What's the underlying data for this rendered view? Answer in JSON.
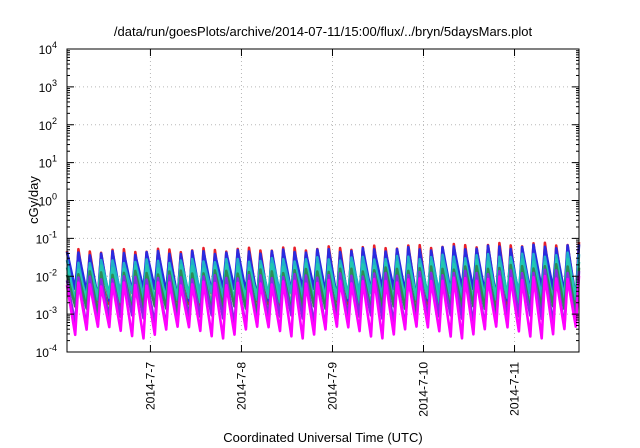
{
  "chart_data": {
    "type": "line",
    "title": "/data/run/goesPlots/archive/2014-07-11/15:00/flux/../bryn/5daysMars.plot",
    "xlabel": "Coordinated Universal Time (UTC)",
    "ylabel": "cGy/day",
    "y_scale": "log",
    "ylim": [
      0.0001,
      10000
    ],
    "xlim": [
      "2014-07-06 02:00",
      "2014-07-11 17:00"
    ],
    "x_ticks": [
      "2014-7-7",
      "2014-7-8",
      "2014-7-9",
      "2014-7-10",
      "2014-7-11"
    ],
    "y_ticks": [
      {
        "base": "10",
        "exp": "-4"
      },
      {
        "base": "10",
        "exp": "-3"
      },
      {
        "base": "10",
        "exp": "-2"
      },
      {
        "base": "10",
        "exp": "-1"
      },
      {
        "base": "10",
        "exp": "0"
      },
      {
        "base": "10",
        "exp": "1"
      },
      {
        "base": "10",
        "exp": "2"
      },
      {
        "base": "10",
        "exp": "3"
      },
      {
        "base": "10",
        "exp": "4"
      }
    ],
    "grid": true,
    "legend": "none",
    "cycles_per_day": 8,
    "peak_trend": [
      0.04,
      0.042,
      0.045,
      0.05,
      0.057,
      0.063
    ],
    "series": [
      {
        "color": "#e8202a",
        "peak_factor": 1.15,
        "trough": 0.0016
      },
      {
        "color": "#2a2ae0",
        "peak_factor": 1.0,
        "trough": 0.0035
      },
      {
        "color": "#1fb0c8",
        "peak_factor": 0.6,
        "trough": 0.0028
      },
      {
        "color": "#22c8b0",
        "peak_factor": 0.42,
        "trough": 0.0022
      },
      {
        "color": "#2e8b57",
        "peak_factor": 0.3,
        "trough": 0.0012
      },
      {
        "color": "#8a2be2",
        "peak_factor": 0.22,
        "trough": 0.0007
      },
      {
        "color": "#ff00ff",
        "peak_factor": 0.15,
        "trough": 0.00035
      }
    ]
  }
}
